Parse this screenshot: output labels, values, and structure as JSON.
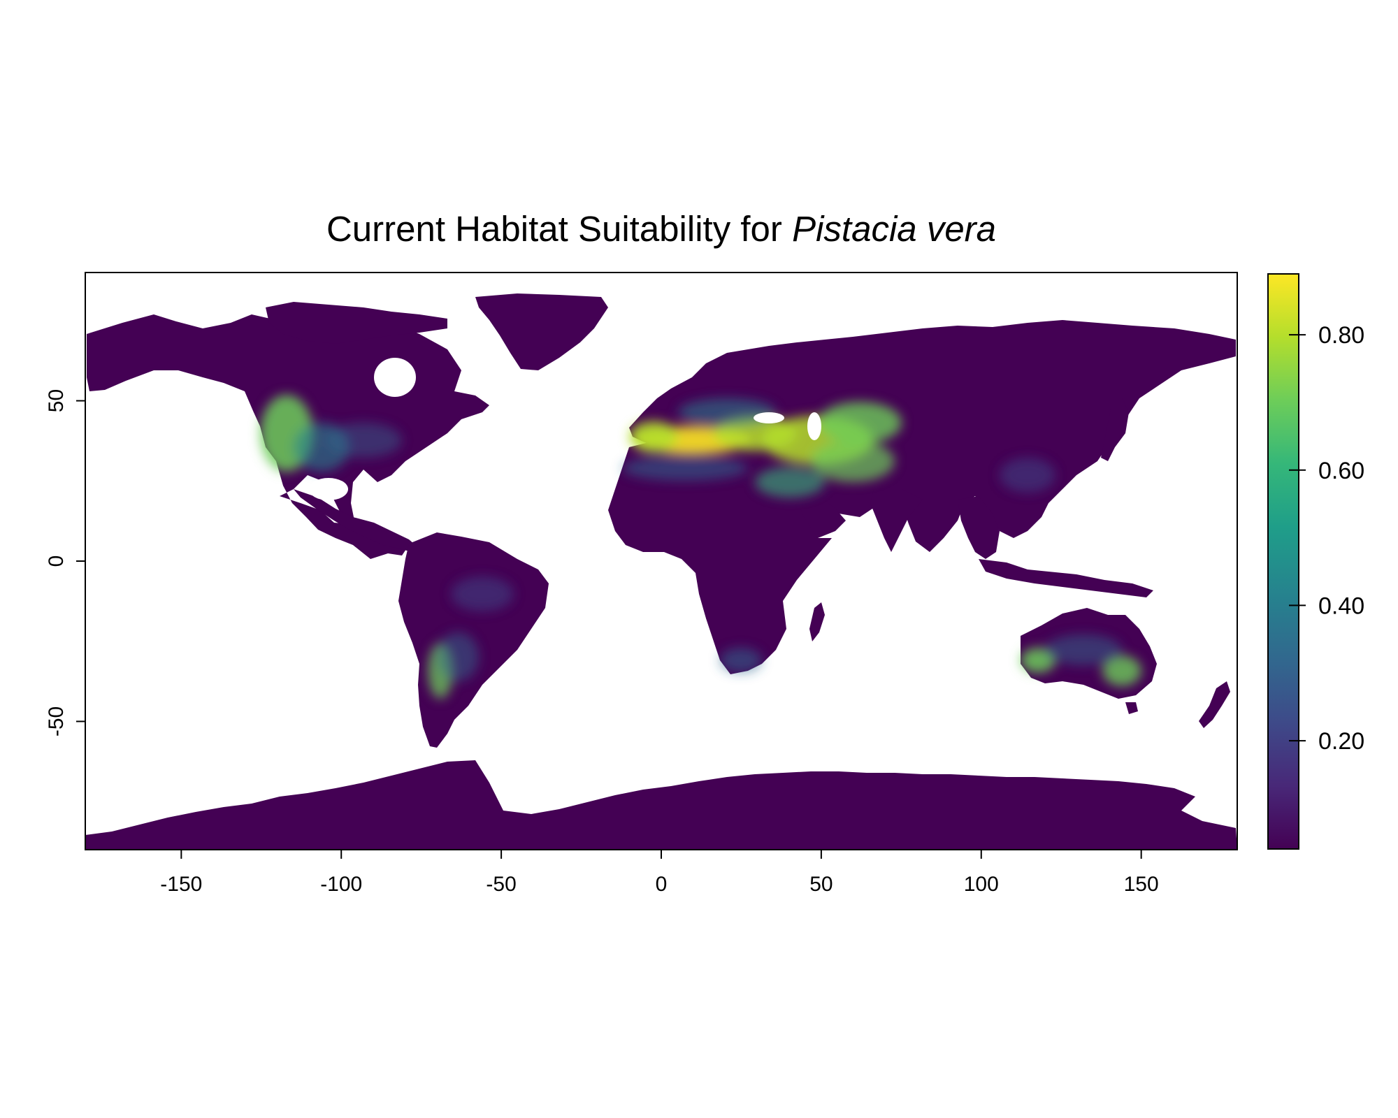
{
  "title": {
    "prefix": "Current Habitat Suitability for",
    "species": "Pistacia vera"
  },
  "map": {
    "x_range": [
      -180,
      180
    ],
    "y_range": [
      -90,
      90
    ],
    "x_ticks": [
      "-150",
      "-100",
      "-50",
      "0",
      "50",
      "100",
      "150"
    ],
    "y_ticks": [
      "50",
      "0",
      "-50"
    ],
    "land_color_low": "#440154",
    "ocean_color": "#ffffff",
    "high_suitability_regions": [
      "Mediterranean Basin",
      "Iberian Peninsula",
      "Anatolia",
      "Caucasus",
      "Iran",
      "Central Asia",
      "Western United States",
      "Southern Australia",
      "Central Chile"
    ]
  },
  "legend": {
    "range": [
      0.04,
      0.89
    ],
    "ticks": [
      "0.20",
      "0.40",
      "0.60",
      "0.80"
    ],
    "palette": "viridis",
    "colors": [
      "#440154",
      "#482878",
      "#3E4A89",
      "#31688E",
      "#26828E",
      "#1F9E89",
      "#35B779",
      "#6DCD59",
      "#B4DE2C",
      "#FDE725"
    ]
  }
}
